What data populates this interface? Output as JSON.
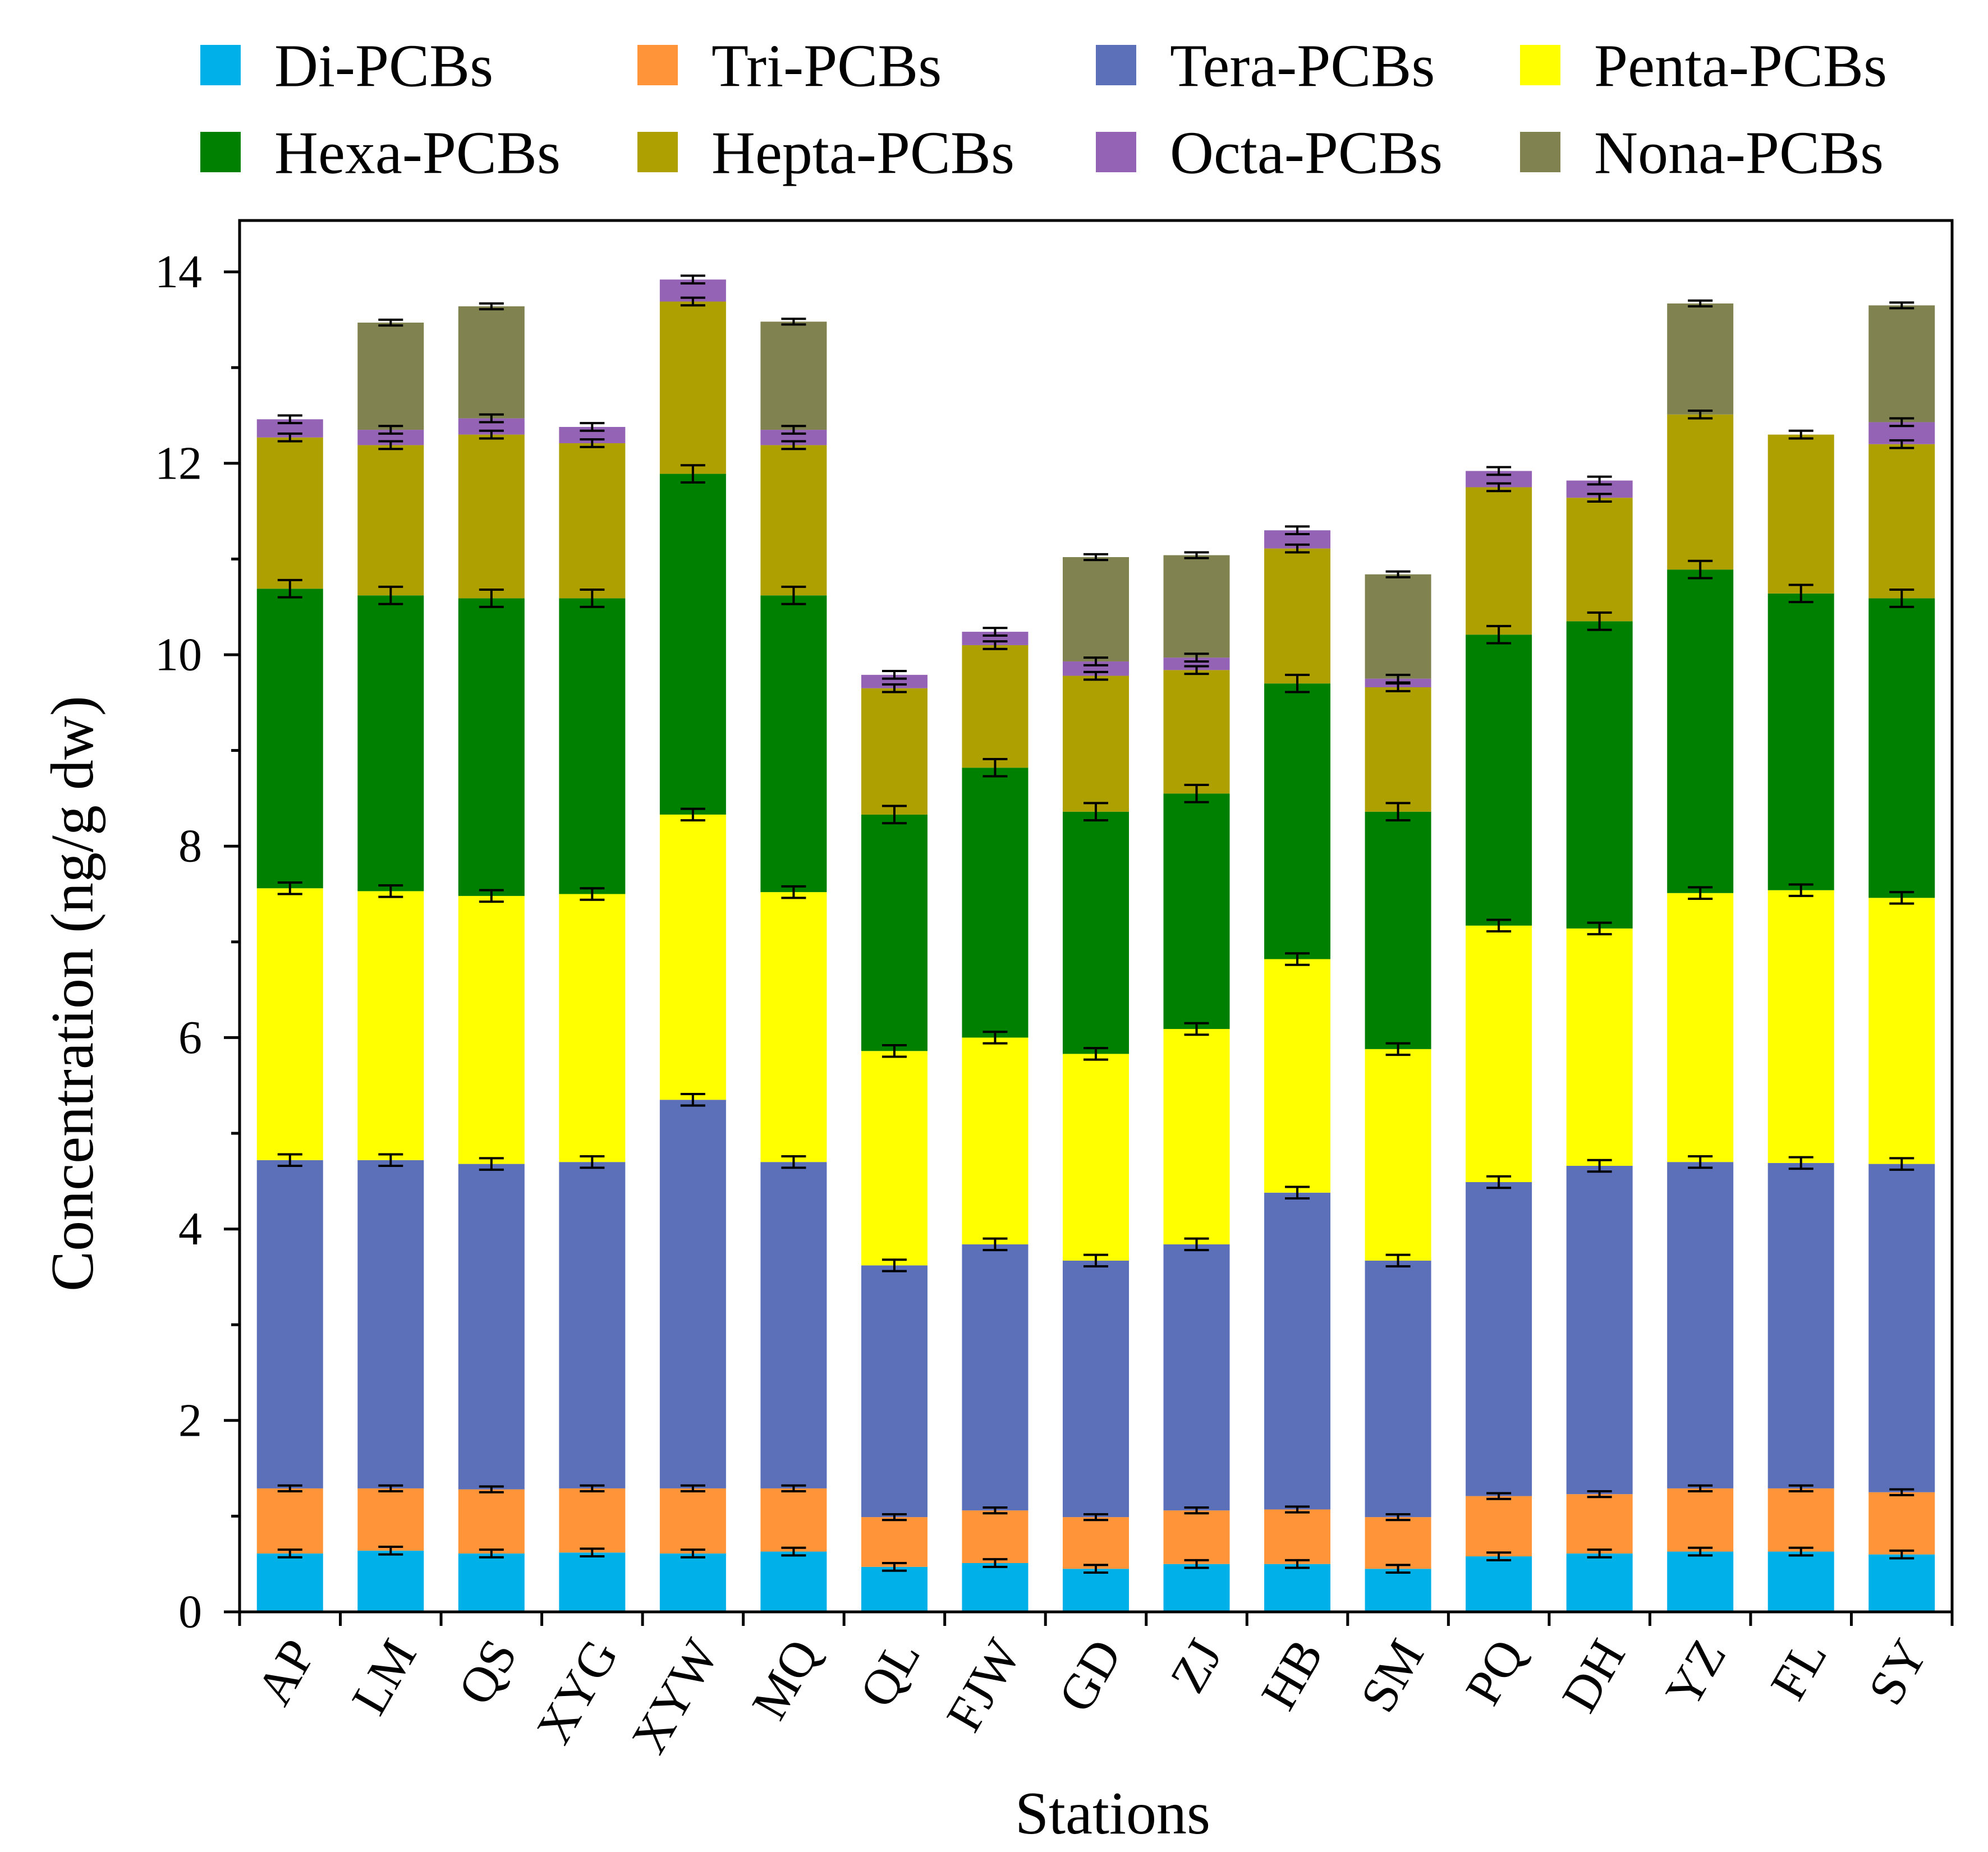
{
  "chart_data": {
    "type": "bar",
    "stacked": true,
    "title": "",
    "xlabel": "Stations",
    "ylabel": "Concentration (ng/g dw)",
    "ylim": [
      0,
      14.5
    ],
    "yticks": [
      0,
      2,
      4,
      6,
      8,
      10,
      12,
      14
    ],
    "legend_position": "top",
    "categories": [
      "AP",
      "LM",
      "QS",
      "XYG",
      "XYW",
      "MQ",
      "QL",
      "FJW",
      "GD",
      "ZJ",
      "HB",
      "SM",
      "PQ",
      "DH",
      "YZ",
      "FL",
      "SY"
    ],
    "series": [
      {
        "name": "Di-PCBs",
        "color": "#00b0e8",
        "error": 0.04,
        "values": [
          0.61,
          0.64,
          0.61,
          0.62,
          0.61,
          0.63,
          0.47,
          0.51,
          0.45,
          0.5,
          0.5,
          0.45,
          0.58,
          0.61,
          0.63,
          0.63,
          0.6
        ]
      },
      {
        "name": "Tri-PCBs",
        "color": "#ff9538",
        "error": 0.03,
        "values": [
          0.68,
          0.65,
          0.67,
          0.67,
          0.68,
          0.66,
          0.52,
          0.55,
          0.54,
          0.56,
          0.57,
          0.54,
          0.63,
          0.62,
          0.66,
          0.66,
          0.65
        ]
      },
      {
        "name": "Tera-PCBs",
        "color": "#5b70b8",
        "error": 0.06,
        "values": [
          3.43,
          3.43,
          3.4,
          3.41,
          4.06,
          3.41,
          2.63,
          2.78,
          2.68,
          2.78,
          3.31,
          2.68,
          3.28,
          3.43,
          3.41,
          3.4,
          3.43
        ]
      },
      {
        "name": "Penta-PCBs",
        "color": "#ffff00",
        "error": 0.06,
        "values": [
          2.84,
          2.81,
          2.8,
          2.8,
          2.98,
          2.82,
          2.24,
          2.16,
          2.16,
          2.25,
          2.44,
          2.21,
          2.68,
          2.48,
          2.81,
          2.85,
          2.78
        ]
      },
      {
        "name": "Hexa-PCBs",
        "color": "#008000",
        "error": 0.09,
        "values": [
          3.13,
          3.09,
          3.11,
          3.09,
          3.56,
          3.1,
          2.47,
          2.82,
          2.53,
          2.46,
          2.88,
          2.48,
          3.04,
          3.21,
          3.38,
          3.1,
          3.13
        ]
      },
      {
        "name": "Hepta-PCBs",
        "color": "#aea000",
        "error": 0.04,
        "values": [
          1.58,
          1.57,
          1.71,
          1.62,
          1.8,
          1.57,
          1.32,
          1.28,
          1.42,
          1.29,
          1.41,
          1.3,
          1.54,
          1.29,
          1.62,
          1.66,
          1.61
        ]
      },
      {
        "name": "Octa-PCBs",
        "color": "#9563b5",
        "error": 0.04,
        "values": [
          0.19,
          0.16,
          0.17,
          0.17,
          0.23,
          0.16,
          0.14,
          0.14,
          0.15,
          0.13,
          0.19,
          0.09,
          0.17,
          0.18,
          0.0,
          0.0,
          0.23
        ]
      },
      {
        "name": "Nona-PCBs",
        "color": "#80824f",
        "error": 0.03,
        "values": [
          0.0,
          1.12,
          1.17,
          0.0,
          0.0,
          1.13,
          0.0,
          0.0,
          1.09,
          1.07,
          0.0,
          1.09,
          0.0,
          0.0,
          1.16,
          0.0,
          1.22
        ]
      }
    ]
  }
}
